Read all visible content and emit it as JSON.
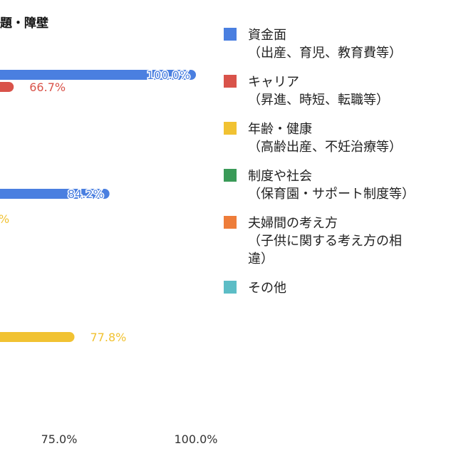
{
  "chart_data": {
    "type": "bar",
    "orientation": "horizontal",
    "title": "題・障壁",
    "x_axis": {
      "ticks": [
        "75.0%",
        "100.0%"
      ],
      "tick_values": [
        75,
        100
      ]
    },
    "series": [
      {
        "color": "#4a7fe0",
        "values": [
          100.0,
          84.2
        ]
      },
      {
        "color": "#d9534a",
        "values": [
          66.7
        ]
      },
      {
        "color": "#f1c232",
        "values": [
          77.8
        ]
      }
    ],
    "bars": [
      {
        "series": 0,
        "value": 100.0,
        "label": "100.0%",
        "label_style": "inside"
      },
      {
        "series": 1,
        "value": 66.7,
        "label": "66.7%",
        "label_style": "outside"
      },
      {
        "series": 0,
        "value": 84.2,
        "label": "84.2%",
        "label_style": "inside"
      },
      {
        "series": 2,
        "value": null,
        "label": "%",
        "label_style": "partial"
      },
      {
        "series": 2,
        "value": 77.8,
        "label": "77.8%",
        "label_style": "outside"
      }
    ],
    "legend": {
      "position": "right",
      "items": [
        {
          "color": "#4a7fe0",
          "lines": [
            "資金面",
            "（出産、育児、教育費等）"
          ]
        },
        {
          "color": "#d9534a",
          "lines": [
            "キャリア",
            "（昇進、時短、転職等）"
          ]
        },
        {
          "color": "#f1c232",
          "lines": [
            "年齢・健康",
            "（高齢出産、不妊治療等）"
          ]
        },
        {
          "color": "#3a9a58",
          "lines": [
            "制度や社会",
            "（保育園・サポート制度等）"
          ]
        },
        {
          "color": "#ee7d3a",
          "lines": [
            "夫婦間の考え方",
            "（子供に関する考え方の相",
            "違）"
          ]
        },
        {
          "color": "#5cbdc6",
          "lines": [
            "その他"
          ]
        }
      ]
    },
    "grid": false
  }
}
